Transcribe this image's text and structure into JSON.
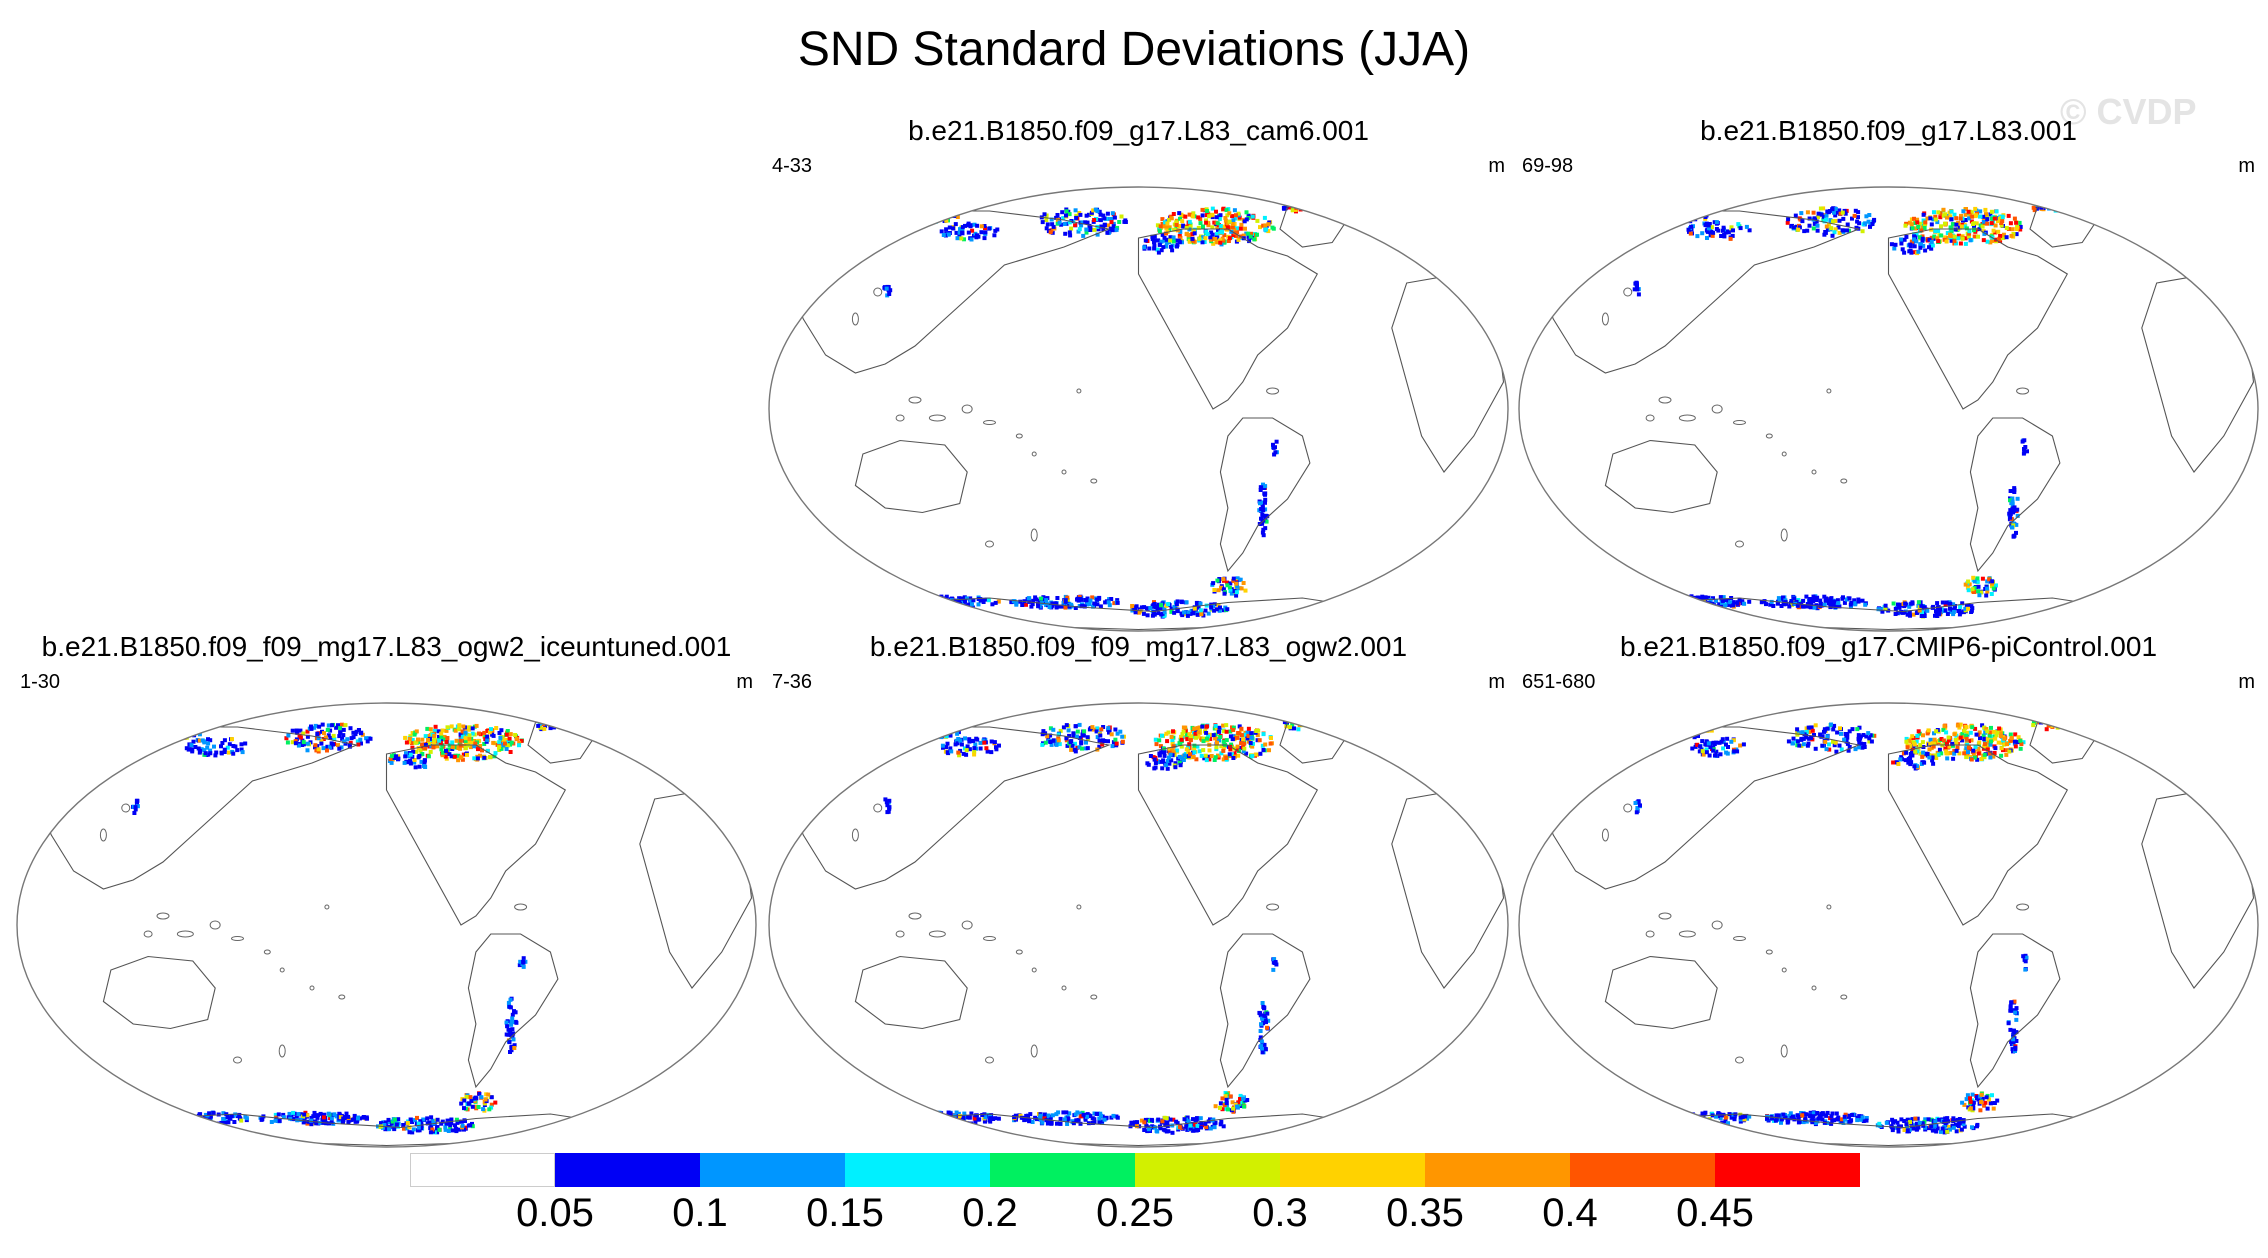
{
  "title": "SND Standard Deviations (JJA)",
  "watermark": "© CVDP",
  "panels": [
    {
      "title": "b.e21.B1850.f09_g17.L83_cam6.001",
      "years": "4-33",
      "units": "m"
    },
    {
      "title": "b.e21.B1850.f09_g17.L83.001",
      "years": "69-98",
      "units": "m"
    },
    {
      "title": "b.e21.B1850.f09_f09_mg17.L83_ogw2_iceuntuned.001",
      "years": "1-30",
      "units": "m"
    },
    {
      "title": "b.e21.B1850.f09_f09_mg17.L83_ogw2.001",
      "years": "7-36",
      "units": "m"
    },
    {
      "title": "b.e21.B1850.f09_g17.CMIP6-piControl.001",
      "years": "651-680",
      "units": "m"
    }
  ],
  "colorbar": {
    "labels": [
      "0.05",
      "0.1",
      "0.15",
      "0.2",
      "0.25",
      "0.3",
      "0.35",
      "0.4",
      "0.45"
    ],
    "colors": [
      "#ffffff",
      "#0000f5",
      "#0096ff",
      "#00f0ff",
      "#00f060",
      "#d2f000",
      "#ffd200",
      "#ff9600",
      "#ff5500",
      "#ff0000"
    ]
  }
}
